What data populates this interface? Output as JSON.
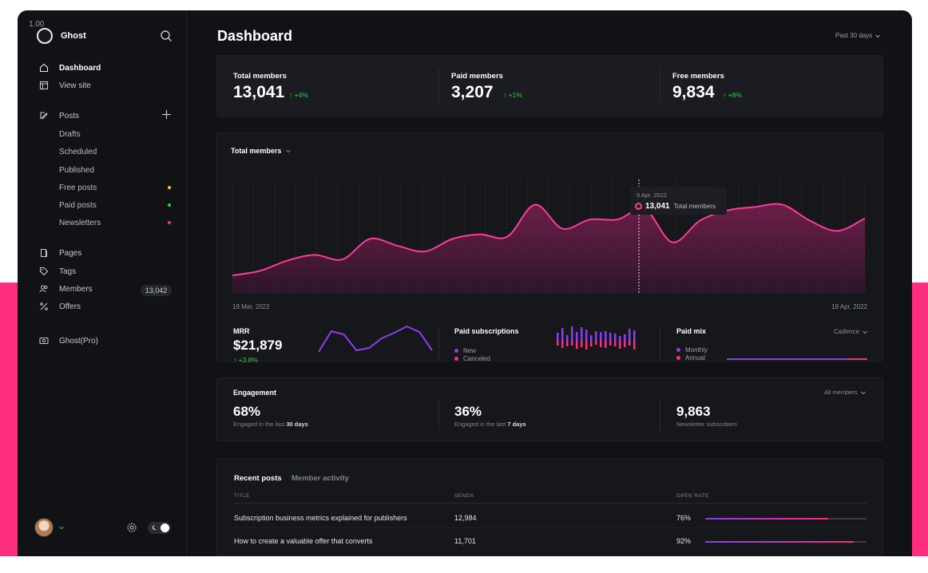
{
  "version": "1.00",
  "brand": {
    "name": "Ghost"
  },
  "icons": [
    "search-icon",
    "home-icon",
    "view-site-icon",
    "posts-icon",
    "plus-icon",
    "pages-icon",
    "tags-icon",
    "members-icon",
    "offers-icon",
    "ghost-pro-icon",
    "gear-icon",
    "moon-icon",
    "chevron-down-icon"
  ],
  "colors": {
    "accent_pink": "#ff2d7e",
    "accent_purple": "#8c3cf0",
    "positive": "#30cf43",
    "dot_free": "#f5c518",
    "dot_paid": "#30cf43",
    "dot_news": "#ff2d7e"
  },
  "sidebar": {
    "dashboard": "Dashboard",
    "view_site": "View site",
    "posts": "Posts",
    "drafts": "Drafts",
    "scheduled": "Scheduled",
    "published": "Published",
    "free_posts": "Free posts",
    "paid_posts": "Paid posts",
    "newsletters": "Newsletters",
    "pages": "Pages",
    "tags": "Tags",
    "members": "Members",
    "members_count": "13,042",
    "offers": "Offers",
    "ghost_pro": "Ghost(Pro)"
  },
  "header": {
    "title": "Dashboard",
    "range": "Past 30 days"
  },
  "stats": [
    {
      "label": "Total members",
      "value": "13,041",
      "delta": "+4%"
    },
    {
      "label": "Paid members",
      "value": "3,207",
      "delta": "+1%"
    },
    {
      "label": "Free members",
      "value": "9,834",
      "delta": "+8%"
    }
  ],
  "chart_data": {
    "type": "area",
    "title": "Total members",
    "x_start_label": "19 Mar, 2022",
    "x_end_label": "19 Apr, 2022",
    "values": [
      16,
      20,
      29,
      34,
      30,
      48,
      42,
      37,
      48,
      52,
      50,
      78,
      57,
      65,
      65,
      74,
      45,
      64,
      73,
      76,
      78,
      64,
      55,
      66
    ],
    "tooltip": {
      "date": "9 Apr, 2022",
      "value": "13,041",
      "label": "Total members"
    }
  },
  "mrr": {
    "label": "MRR",
    "value": "$21,879",
    "delta": "+3.8%",
    "spark": [
      2,
      28,
      24,
      4,
      7,
      19,
      26,
      34,
      27,
      4
    ]
  },
  "paid_subs": {
    "label": "Paid subscriptions",
    "legend_new": "New",
    "legend_canceled": "Canceled",
    "new_bars": [
      10,
      16,
      7,
      18,
      11,
      17,
      14,
      7,
      12,
      11,
      12,
      10,
      9,
      6,
      8,
      15,
      13
    ],
    "canceled_bars": [
      6,
      9,
      7,
      6,
      10,
      8,
      11,
      7,
      5,
      8,
      9,
      6,
      7,
      10,
      8,
      6,
      11
    ]
  },
  "paid_mix": {
    "label": "Paid mix",
    "cadence": "Cadence",
    "monthly": "Monthly",
    "annual": "Annual",
    "monthly_pct": 87
  },
  "engagement": {
    "title": "Engagement",
    "filter": "All members",
    "items": [
      {
        "value": "68%",
        "pre": "Engaged in the last",
        "bold": "30 days"
      },
      {
        "value": "36%",
        "pre": "Engaged in the last",
        "bold": "7 days"
      },
      {
        "value": "9,863",
        "pre": "Newsletter subscribers",
        "bold": ""
      }
    ]
  },
  "recent": {
    "tab_active": "Recent posts",
    "tab_other": "Member activity",
    "col_title": "TITLE",
    "col_sends": "SENDS",
    "col_open": "OPEN RATE",
    "rows": [
      {
        "title": "Subscription business metrics explained for publishers",
        "sends": "12,984",
        "open_rate": "76%",
        "pct": 76
      },
      {
        "title": "How to create a valuable offer that converts",
        "sends": "11,701",
        "open_rate": "92%",
        "pct": 92
      }
    ]
  }
}
